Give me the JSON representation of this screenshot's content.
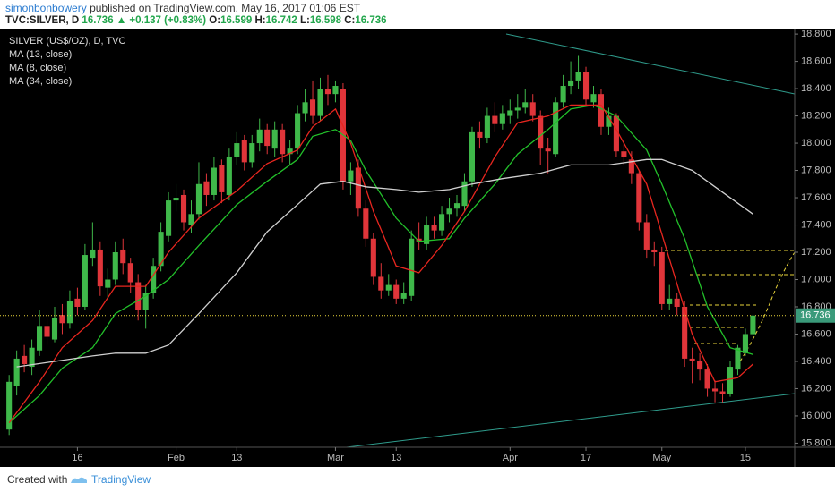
{
  "header": {
    "author": "simonbonbowery",
    "published": "published on TradingView.com, May 16, 2017 01:06 EST",
    "quote": {
      "symbol": "TVC:SILVER, D",
      "price": "16.736",
      "arrow": "▲",
      "change": "+0.137 (+0.83%)",
      "o_label": "O:",
      "o": "16.599",
      "h_label": "H:",
      "h": "16.742",
      "l_label": "L:",
      "l": "16.598",
      "c_label": "C:",
      "c": "16.736"
    }
  },
  "footer": {
    "created": "Created with",
    "brand": "TradingView"
  },
  "chart_data": {
    "type": "candlestick",
    "title": "SILVER (US$/OZ), D, TVC",
    "up_color": "#3fb84a",
    "down_color": "#e0353a",
    "grid": false,
    "price_label": "16.736",
    "ylim": [
      15.77,
      18.84
    ],
    "yticks": [
      {
        "value": 15.8,
        "label": "15.800"
      },
      {
        "value": 16.0,
        "label": "16.000"
      },
      {
        "value": 16.2,
        "label": "16.200"
      },
      {
        "value": 16.4,
        "label": "16.400"
      },
      {
        "value": 16.6,
        "label": "16.600"
      },
      {
        "value": 16.8,
        "label": "16.800"
      },
      {
        "value": 17.0,
        "label": "17.000"
      },
      {
        "value": 17.2,
        "label": "17.200"
      },
      {
        "value": 17.4,
        "label": "17.400"
      },
      {
        "value": 17.6,
        "label": "17.600"
      },
      {
        "value": 17.8,
        "label": "17.800"
      },
      {
        "value": 18.0,
        "label": "18.000"
      },
      {
        "value": 18.2,
        "label": "18.200"
      },
      {
        "value": 18.4,
        "label": "18.400"
      },
      {
        "value": 18.6,
        "label": "18.600"
      },
      {
        "value": 18.8,
        "label": "18.800"
      }
    ],
    "xlim": [
      -1.2,
      103.5
    ],
    "xticks": [
      {
        "value": 9,
        "label": "16"
      },
      {
        "value": 22,
        "label": "Feb"
      },
      {
        "value": 30,
        "label": "13"
      },
      {
        "value": 43,
        "label": "Mar"
      },
      {
        "value": 51,
        "label": "13"
      },
      {
        "value": 66,
        "label": "Apr"
      },
      {
        "value": 76,
        "label": "17"
      },
      {
        "value": 86,
        "label": "May"
      },
      {
        "value": 97,
        "label": "15"
      }
    ],
    "ohlc": [
      [
        15.9,
        16.3,
        15.86,
        16.25
      ],
      [
        16.22,
        16.48,
        16.15,
        16.42
      ],
      [
        16.44,
        16.52,
        16.32,
        16.38
      ],
      [
        16.36,
        16.56,
        16.3,
        16.5
      ],
      [
        16.48,
        16.78,
        16.44,
        16.66
      ],
      [
        16.66,
        16.72,
        16.52,
        16.58
      ],
      [
        16.56,
        16.8,
        16.54,
        16.72
      ],
      [
        16.74,
        16.82,
        16.6,
        16.68
      ],
      [
        16.68,
        16.92,
        16.64,
        16.84
      ],
      [
        16.86,
        16.94,
        16.74,
        16.8
      ],
      [
        16.8,
        17.26,
        16.78,
        17.18
      ],
      [
        17.16,
        17.42,
        17.1,
        17.22
      ],
      [
        17.22,
        17.28,
        16.88,
        16.95
      ],
      [
        16.94,
        17.08,
        16.86,
        17.0
      ],
      [
        17.0,
        17.28,
        16.96,
        17.2
      ],
      [
        17.22,
        17.3,
        17.04,
        17.12
      ],
      [
        17.12,
        17.16,
        16.9,
        16.98
      ],
      [
        16.98,
        17.04,
        16.7,
        16.78
      ],
      [
        16.78,
        16.96,
        16.64,
        16.9
      ],
      [
        16.9,
        17.16,
        16.86,
        17.1
      ],
      [
        17.1,
        17.42,
        17.06,
        17.35
      ],
      [
        17.32,
        17.64,
        17.28,
        17.58
      ],
      [
        17.58,
        17.7,
        17.5,
        17.6
      ],
      [
        17.62,
        17.66,
        17.36,
        17.42
      ],
      [
        17.4,
        17.58,
        17.34,
        17.48
      ],
      [
        17.48,
        17.86,
        17.44,
        17.7
      ],
      [
        17.72,
        17.78,
        17.54,
        17.62
      ],
      [
        17.62,
        17.9,
        17.58,
        17.82
      ],
      [
        17.84,
        17.88,
        17.56,
        17.64
      ],
      [
        17.62,
        17.96,
        17.58,
        17.9
      ],
      [
        17.9,
        18.08,
        17.84,
        18.0
      ],
      [
        18.02,
        18.06,
        17.8,
        17.86
      ],
      [
        17.86,
        18.06,
        17.82,
        18.0
      ],
      [
        18.0,
        18.18,
        17.94,
        18.1
      ],
      [
        18.1,
        18.14,
        17.92,
        17.98
      ],
      [
        17.96,
        18.16,
        17.9,
        18.1
      ],
      [
        18.1,
        18.14,
        17.86,
        17.92
      ],
      [
        17.92,
        18.02,
        17.84,
        17.96
      ],
      [
        17.96,
        18.28,
        17.92,
        18.22
      ],
      [
        18.22,
        18.4,
        18.16,
        18.3
      ],
      [
        18.32,
        18.46,
        18.14,
        18.2
      ],
      [
        18.2,
        18.48,
        18.16,
        18.4
      ],
      [
        18.4,
        18.5,
        18.28,
        18.36
      ],
      [
        18.36,
        18.46,
        18.3,
        18.42
      ],
      [
        18.4,
        18.44,
        17.66,
        17.72
      ],
      [
        17.72,
        17.86,
        17.62,
        17.8
      ],
      [
        17.82,
        17.88,
        17.46,
        17.52
      ],
      [
        17.52,
        17.58,
        17.24,
        17.3
      ],
      [
        17.3,
        17.34,
        16.96,
        17.02
      ],
      [
        17.02,
        17.12,
        16.86,
        16.92
      ],
      [
        16.92,
        17.04,
        16.88,
        16.96
      ],
      [
        16.96,
        17.0,
        16.82,
        16.86
      ],
      [
        16.86,
        16.98,
        16.82,
        16.9
      ],
      [
        16.88,
        17.36,
        16.84,
        17.3
      ],
      [
        17.3,
        17.42,
        17.22,
        17.28
      ],
      [
        17.26,
        17.46,
        17.22,
        17.4
      ],
      [
        17.4,
        17.46,
        17.3,
        17.36
      ],
      [
        17.36,
        17.54,
        17.32,
        17.48
      ],
      [
        17.48,
        17.6,
        17.42,
        17.52
      ],
      [
        17.52,
        17.62,
        17.46,
        17.56
      ],
      [
        17.54,
        17.78,
        17.5,
        17.72
      ],
      [
        17.72,
        18.12,
        17.68,
        18.08
      ],
      [
        18.08,
        18.16,
        17.96,
        18.04
      ],
      [
        18.04,
        18.26,
        18.0,
        18.2
      ],
      [
        18.2,
        18.3,
        18.08,
        18.14
      ],
      [
        18.14,
        18.28,
        18.1,
        18.22
      ],
      [
        18.2,
        18.32,
        18.14,
        18.24
      ],
      [
        18.24,
        18.36,
        18.18,
        18.26
      ],
      [
        18.26,
        18.4,
        18.22,
        18.3
      ],
      [
        18.3,
        18.36,
        18.16,
        18.2
      ],
      [
        18.2,
        18.24,
        17.84,
        17.96
      ],
      [
        17.96,
        18.04,
        17.78,
        17.94
      ],
      [
        17.92,
        18.34,
        17.9,
        18.3
      ],
      [
        18.3,
        18.5,
        18.26,
        18.42
      ],
      [
        18.42,
        18.6,
        18.36,
        18.46
      ],
      [
        18.46,
        18.64,
        18.4,
        18.52
      ],
      [
        18.52,
        18.56,
        18.28,
        18.32
      ],
      [
        18.3,
        18.42,
        18.26,
        18.36
      ],
      [
        18.36,
        18.4,
        18.06,
        18.12
      ],
      [
        18.12,
        18.26,
        18.06,
        18.2
      ],
      [
        18.2,
        18.22,
        17.9,
        17.94
      ],
      [
        17.94,
        18.0,
        17.84,
        17.9
      ],
      [
        17.88,
        17.94,
        17.7,
        17.78
      ],
      [
        17.78,
        17.8,
        17.36,
        17.42
      ],
      [
        17.42,
        17.48,
        17.16,
        17.22
      ],
      [
        17.22,
        17.28,
        17.1,
        17.2
      ],
      [
        17.2,
        17.24,
        16.78,
        16.82
      ],
      [
        16.82,
        16.96,
        16.78,
        16.86
      ],
      [
        16.86,
        16.9,
        16.74,
        16.8
      ],
      [
        16.8,
        16.84,
        16.36,
        16.42
      ],
      [
        16.42,
        16.5,
        16.24,
        16.4
      ],
      [
        16.4,
        16.46,
        16.26,
        16.34
      ],
      [
        16.34,
        16.38,
        16.14,
        16.2
      ],
      [
        16.2,
        16.26,
        16.1,
        16.18
      ],
      [
        16.18,
        16.24,
        16.1,
        16.16
      ],
      [
        16.16,
        16.4,
        16.14,
        16.36
      ],
      [
        16.34,
        16.52,
        16.3,
        16.5
      ],
      [
        16.46,
        16.64,
        16.44,
        16.6
      ],
      [
        16.599,
        16.742,
        16.598,
        16.736
      ]
    ],
    "series": [
      {
        "name": "MA (13, close)",
        "color": "#22c02a",
        "x": [
          0,
          4,
          7,
          11,
          14,
          18,
          21,
          25,
          30,
          34,
          38,
          40,
          43,
          45,
          47,
          51,
          54,
          58,
          60,
          64,
          67,
          71,
          74,
          77,
          80,
          84,
          86,
          89,
          92,
          95,
          98
        ],
        "values": [
          15.95,
          16.15,
          16.35,
          16.5,
          16.75,
          16.88,
          17.0,
          17.25,
          17.55,
          17.72,
          17.88,
          18.05,
          18.1,
          18.02,
          17.8,
          17.45,
          17.28,
          17.3,
          17.45,
          17.7,
          17.92,
          18.1,
          18.25,
          18.28,
          18.2,
          17.95,
          17.7,
          17.3,
          16.8,
          16.5,
          16.45
        ]
      },
      {
        "name": "MA (8, close)",
        "color": "#e8261f",
        "x": [
          0,
          4,
          7,
          11,
          14,
          18,
          21,
          25,
          30,
          34,
          38,
          40,
          43,
          45,
          48,
          51,
          54,
          57,
          60,
          64,
          67,
          71,
          74,
          78,
          80,
          84,
          87,
          90,
          93,
          96,
          98
        ],
        "values": [
          15.95,
          16.25,
          16.5,
          16.7,
          16.95,
          16.95,
          17.2,
          17.45,
          17.65,
          17.85,
          17.95,
          18.12,
          18.25,
          18.0,
          17.5,
          17.1,
          17.05,
          17.25,
          17.5,
          17.9,
          18.15,
          18.2,
          18.28,
          18.28,
          18.1,
          17.7,
          17.15,
          16.6,
          16.25,
          16.28,
          16.38
        ]
      },
      {
        "name": "MA (34, close)",
        "color": "#d0d0d0",
        "x": [
          1,
          6,
          11,
          14,
          18,
          21,
          25,
          30,
          34,
          38,
          41,
          44,
          47,
          51,
          54,
          58,
          61,
          65,
          70,
          74,
          79,
          84,
          86,
          90,
          93,
          98
        ],
        "values": [
          16.36,
          16.4,
          16.44,
          16.46,
          16.46,
          16.52,
          16.75,
          17.05,
          17.35,
          17.55,
          17.7,
          17.72,
          17.68,
          17.66,
          17.64,
          17.66,
          17.7,
          17.74,
          17.78,
          17.84,
          17.84,
          17.88,
          17.88,
          17.8,
          17.68,
          17.48
        ]
      }
    ]
  }
}
